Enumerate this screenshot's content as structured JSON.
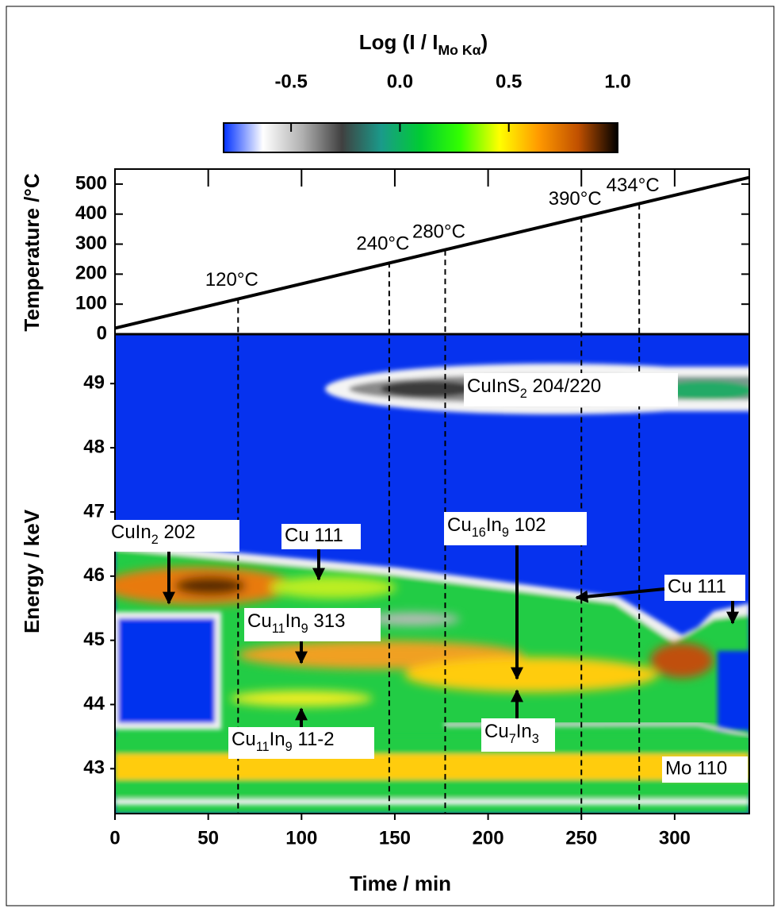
{
  "chart_data": [
    {
      "type": "colorbar",
      "title_parts": [
        "Log (I / I",
        "Mo Kα",
        ")"
      ],
      "xlim": [
        -0.81,
        1.0
      ],
      "xticks": [
        -0.5,
        {
          "value": 0,
          "label": "0.0"
        },
        0.5,
        {
          "value": 1,
          "label": "1.0"
        }
      ],
      "colors": [
        "#0030ff",
        "#ffffff",
        "#b0b0b0",
        "#404040",
        "#1a9a8a",
        "#00cc33",
        "#33ff00",
        "#ffff00",
        "#ff9900",
        "#c05000",
        "#000000"
      ]
    },
    {
      "type": "line",
      "y_label": "Temperature /°C",
      "x": [
        0,
        340
      ],
      "values": [
        20,
        522
      ],
      "color": "#000000",
      "xlim": [
        0,
        340
      ],
      "ylim": [
        0,
        550
      ],
      "xticks": [
        0,
        50,
        100,
        150,
        200,
        250,
        300
      ],
      "yticks": [
        0,
        100,
        200,
        300,
        400,
        500
      ],
      "markers": [
        {
          "x": 66,
          "value": 120,
          "label": "120°C"
        },
        {
          "x": 147,
          "value": 240,
          "label": "240°C"
        },
        {
          "x": 177,
          "value": 280,
          "label": "280°C"
        },
        {
          "x": 250,
          "value": 390,
          "label": "390°C"
        },
        {
          "x": 281,
          "value": 434,
          "label": "434°C"
        }
      ]
    },
    {
      "type": "heatmap",
      "x_label": "Time / min",
      "y_label": "Energy / keV",
      "xlim": [
        0,
        340
      ],
      "ylim": [
        42.3,
        49.77
      ],
      "xticks": [
        0,
        50,
        100,
        150,
        200,
        250,
        300
      ],
      "yticks": [
        43,
        44,
        45,
        46,
        47,
        48,
        49
      ],
      "annotations": [
        {
          "parts": [
            "CuIn",
            "2",
            " 202"
          ]
        },
        {
          "parts": [
            "Cu 111"
          ]
        },
        {
          "parts": [
            "Cu",
            "16",
            "In",
            "9",
            "  102"
          ]
        },
        {
          "parts": [
            "Cu 111"
          ]
        },
        {
          "parts": [
            "Cu",
            "11",
            "In",
            "9",
            "  313"
          ]
        },
        {
          "parts": [
            "Cu",
            "11",
            "In",
            "9",
            "  11-2"
          ]
        },
        {
          "parts": [
            "Cu",
            "7",
            "In",
            "3"
          ]
        },
        {
          "parts": [
            "Mo 110"
          ]
        },
        {
          "parts": [
            "CuInS",
            "2",
            "  204/220"
          ]
        }
      ]
    }
  ]
}
